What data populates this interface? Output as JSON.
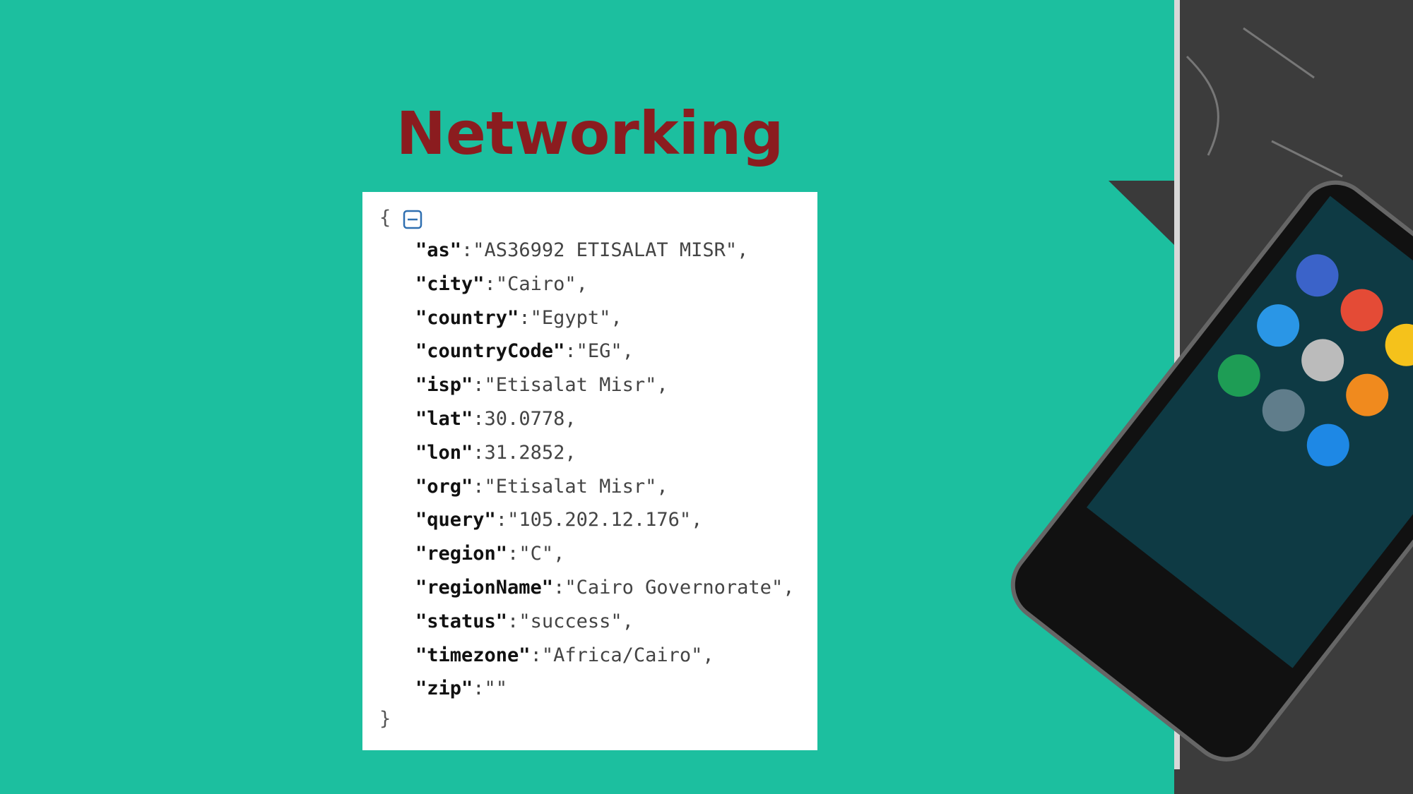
{
  "title": "Networking",
  "json": {
    "open": "{",
    "close": "}",
    "colon": ":",
    "comma": ",",
    "entries": [
      {
        "key": "\"as\"",
        "value": "\"AS36992 ETISALAT MISR\""
      },
      {
        "key": "\"city\"",
        "value": "\"Cairo\""
      },
      {
        "key": "\"country\"",
        "value": "\"Egypt\""
      },
      {
        "key": "\"countryCode\"",
        "value": "\"EG\""
      },
      {
        "key": "\"isp\"",
        "value": "\"Etisalat Misr\""
      },
      {
        "key": "\"lat\"",
        "value": "30.0778"
      },
      {
        "key": "\"lon\"",
        "value": "31.2852"
      },
      {
        "key": "\"org\"",
        "value": "\"Etisalat Misr\""
      },
      {
        "key": "\"query\"",
        "value": "\"105.202.12.176\""
      },
      {
        "key": "\"region\"",
        "value": "\"C\""
      },
      {
        "key": "\"regionName\"",
        "value": "\"Cairo Governorate\""
      },
      {
        "key": "\"status\"",
        "value": "\"success\""
      },
      {
        "key": "\"timezone\"",
        "value": "\"Africa/Cairo\""
      },
      {
        "key": "\"zip\"",
        "value": "\"\""
      }
    ]
  }
}
